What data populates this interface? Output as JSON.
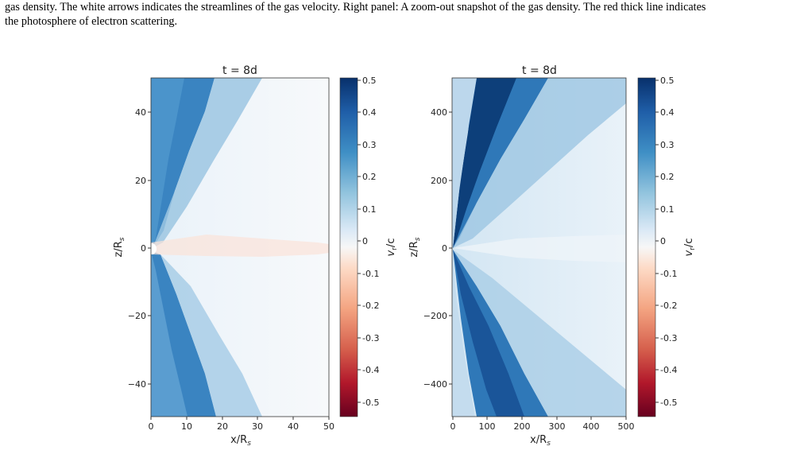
{
  "caption": {
    "line1": "gas density. The white arrows indicates the streamlines of the gas velocity. Right panel: A zoom-out snapshot of the gas density. The red thick line indicates",
    "line2": "the photosphere of electron scattering."
  },
  "panels": [
    {
      "title": "t = 8d",
      "xlabel_main": "x/R",
      "xlabel_sub": "s",
      "ylabel_main": "z/R",
      "ylabel_sub": "s",
      "xticks": [
        "0",
        "10",
        "20",
        "30",
        "40",
        "50"
      ],
      "yticks": [
        "40",
        "20",
        "0",
        "−20",
        "−40"
      ],
      "colorbar": {
        "label_main": "v",
        "label_sub": "r",
        "label_tail": "/c",
        "ticks": [
          "0.5",
          "0.4",
          "0.3",
          "0.2",
          "0.1",
          "0",
          "-0.1",
          "-0.2",
          "-0.3",
          "-0.4",
          "-0.5"
        ]
      }
    },
    {
      "title": "t = 8d",
      "xlabel_main": "x/R",
      "xlabel_sub": "s",
      "ylabel_main": "z/R",
      "ylabel_sub": "s",
      "xticks": [
        "0",
        "100",
        "200",
        "300",
        "400",
        "500"
      ],
      "yticks": [
        "400",
        "200",
        "0",
        "−200",
        "−400"
      ],
      "colorbar": {
        "label_main": "v",
        "label_sub": "r",
        "label_tail": "/c",
        "ticks": [
          "0.5",
          "0.4",
          "0.3",
          "0.2",
          "0.1",
          "0",
          "-0.1",
          "-0.2",
          "-0.3",
          "-0.4",
          "-0.5"
        ]
      }
    }
  ],
  "colors": {
    "dark_blue": "#0b2f66",
    "mid_blue": "#3b86c2",
    "light_blue": "#c9e0f0",
    "white": "#f7f7f7",
    "light_red": "#f7c6ad",
    "mid_red": "#d6604d",
    "dark_red": "#67001f"
  }
}
